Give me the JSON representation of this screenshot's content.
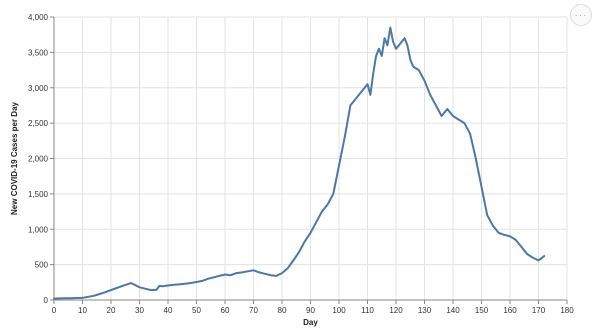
{
  "actions_menu": {
    "icon": "ellipsis-icon",
    "glyph": "···"
  },
  "chart_data": {
    "type": "line",
    "title": "",
    "xlabel": "Day",
    "ylabel": "New COVID-19 Cases per Day",
    "xlim": [
      0,
      180
    ],
    "ylim": [
      0,
      4000
    ],
    "x_ticks": [
      0,
      10,
      20,
      30,
      40,
      50,
      60,
      70,
      80,
      90,
      100,
      110,
      120,
      130,
      140,
      150,
      160,
      170,
      180
    ],
    "y_ticks": [
      0,
      500,
      1000,
      1500,
      2000,
      2500,
      3000,
      3500,
      4000
    ],
    "y_tick_labels": [
      "0",
      "500",
      "1,000",
      "1,500",
      "2,000",
      "2,500",
      "3,000",
      "3,500",
      "4,000"
    ],
    "grid": true,
    "color": "#4c78a8",
    "series": [
      {
        "x": [
          0,
          2,
          4,
          6,
          8,
          10,
          12,
          14,
          16,
          18,
          20,
          22,
          24,
          26,
          27,
          28,
          30,
          32,
          34,
          36,
          37,
          38,
          40,
          42,
          44,
          46,
          48,
          50,
          52,
          54,
          56,
          58,
          60,
          62,
          64,
          66,
          68,
          70,
          72,
          74,
          76,
          78,
          80,
          82,
          84,
          86,
          88,
          90,
          92,
          94,
          96,
          98,
          100,
          102,
          104,
          106,
          108,
          110,
          111,
          112,
          113,
          114,
          115,
          116,
          117,
          118,
          119,
          120,
          121,
          122,
          123,
          124,
          125,
          126,
          128,
          130,
          132,
          134,
          136,
          138,
          140,
          142,
          144,
          146,
          148,
          150,
          152,
          154,
          156,
          158,
          160,
          162,
          164,
          166,
          168,
          170,
          172
        ],
        "y": [
          20,
          22,
          25,
          25,
          28,
          30,
          45,
          60,
          85,
          110,
          140,
          170,
          200,
          225,
          240,
          220,
          180,
          160,
          140,
          145,
          200,
          195,
          205,
          215,
          220,
          230,
          240,
          255,
          270,
          300,
          320,
          340,
          360,
          350,
          380,
          390,
          405,
          420,
          390,
          370,
          350,
          340,
          380,
          450,
          560,
          680,
          830,
          950,
          1100,
          1250,
          1350,
          1500,
          1900,
          2300,
          2750,
          2850,
          2950,
          3050,
          2900,
          3200,
          3450,
          3550,
          3450,
          3700,
          3600,
          3850,
          3650,
          3550,
          3600,
          3650,
          3700,
          3600,
          3400,
          3300,
          3250,
          3100,
          2900,
          2750,
          2600,
          2700,
          2600,
          2550,
          2500,
          2350,
          2000,
          1600,
          1200,
          1050,
          950,
          920,
          900,
          850,
          750,
          650,
          600,
          560,
          620
        ]
      }
    ]
  }
}
